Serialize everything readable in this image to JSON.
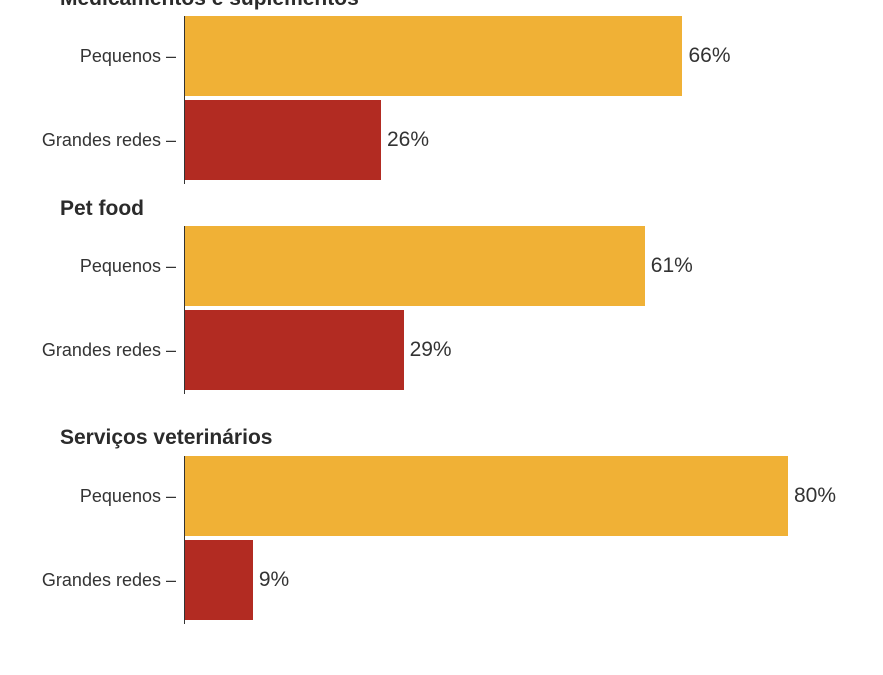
{
  "colors": {
    "small": "#f0b136",
    "large": "#b22b22"
  },
  "chart_data": {
    "type": "bar",
    "orientation": "horizontal",
    "xlim": [
      0,
      100
    ],
    "unit": "%",
    "groups": [
      {
        "title": "Medicamentos e suplementos",
        "bars": [
          {
            "label": "Pequenos –",
            "value": 66,
            "value_label": "66%",
            "series": "small"
          },
          {
            "label": "Grandes redes –",
            "value": 26,
            "value_label": "26%",
            "series": "large"
          }
        ]
      },
      {
        "title": "Pet food",
        "bars": [
          {
            "label": "Pequenos –",
            "value": 61,
            "value_label": "61%",
            "series": "small"
          },
          {
            "label": "Grandes redes –",
            "value": 29,
            "value_label": "29%",
            "series": "large"
          }
        ]
      },
      {
        "title": "Serviços veterinários",
        "bars": [
          {
            "label": "Pequenos –",
            "value": 80,
            "value_label": "80%",
            "series": "small"
          },
          {
            "label": "Grandes redes –",
            "value": 9,
            "value_label": "9%",
            "series": "large"
          }
        ]
      }
    ]
  }
}
